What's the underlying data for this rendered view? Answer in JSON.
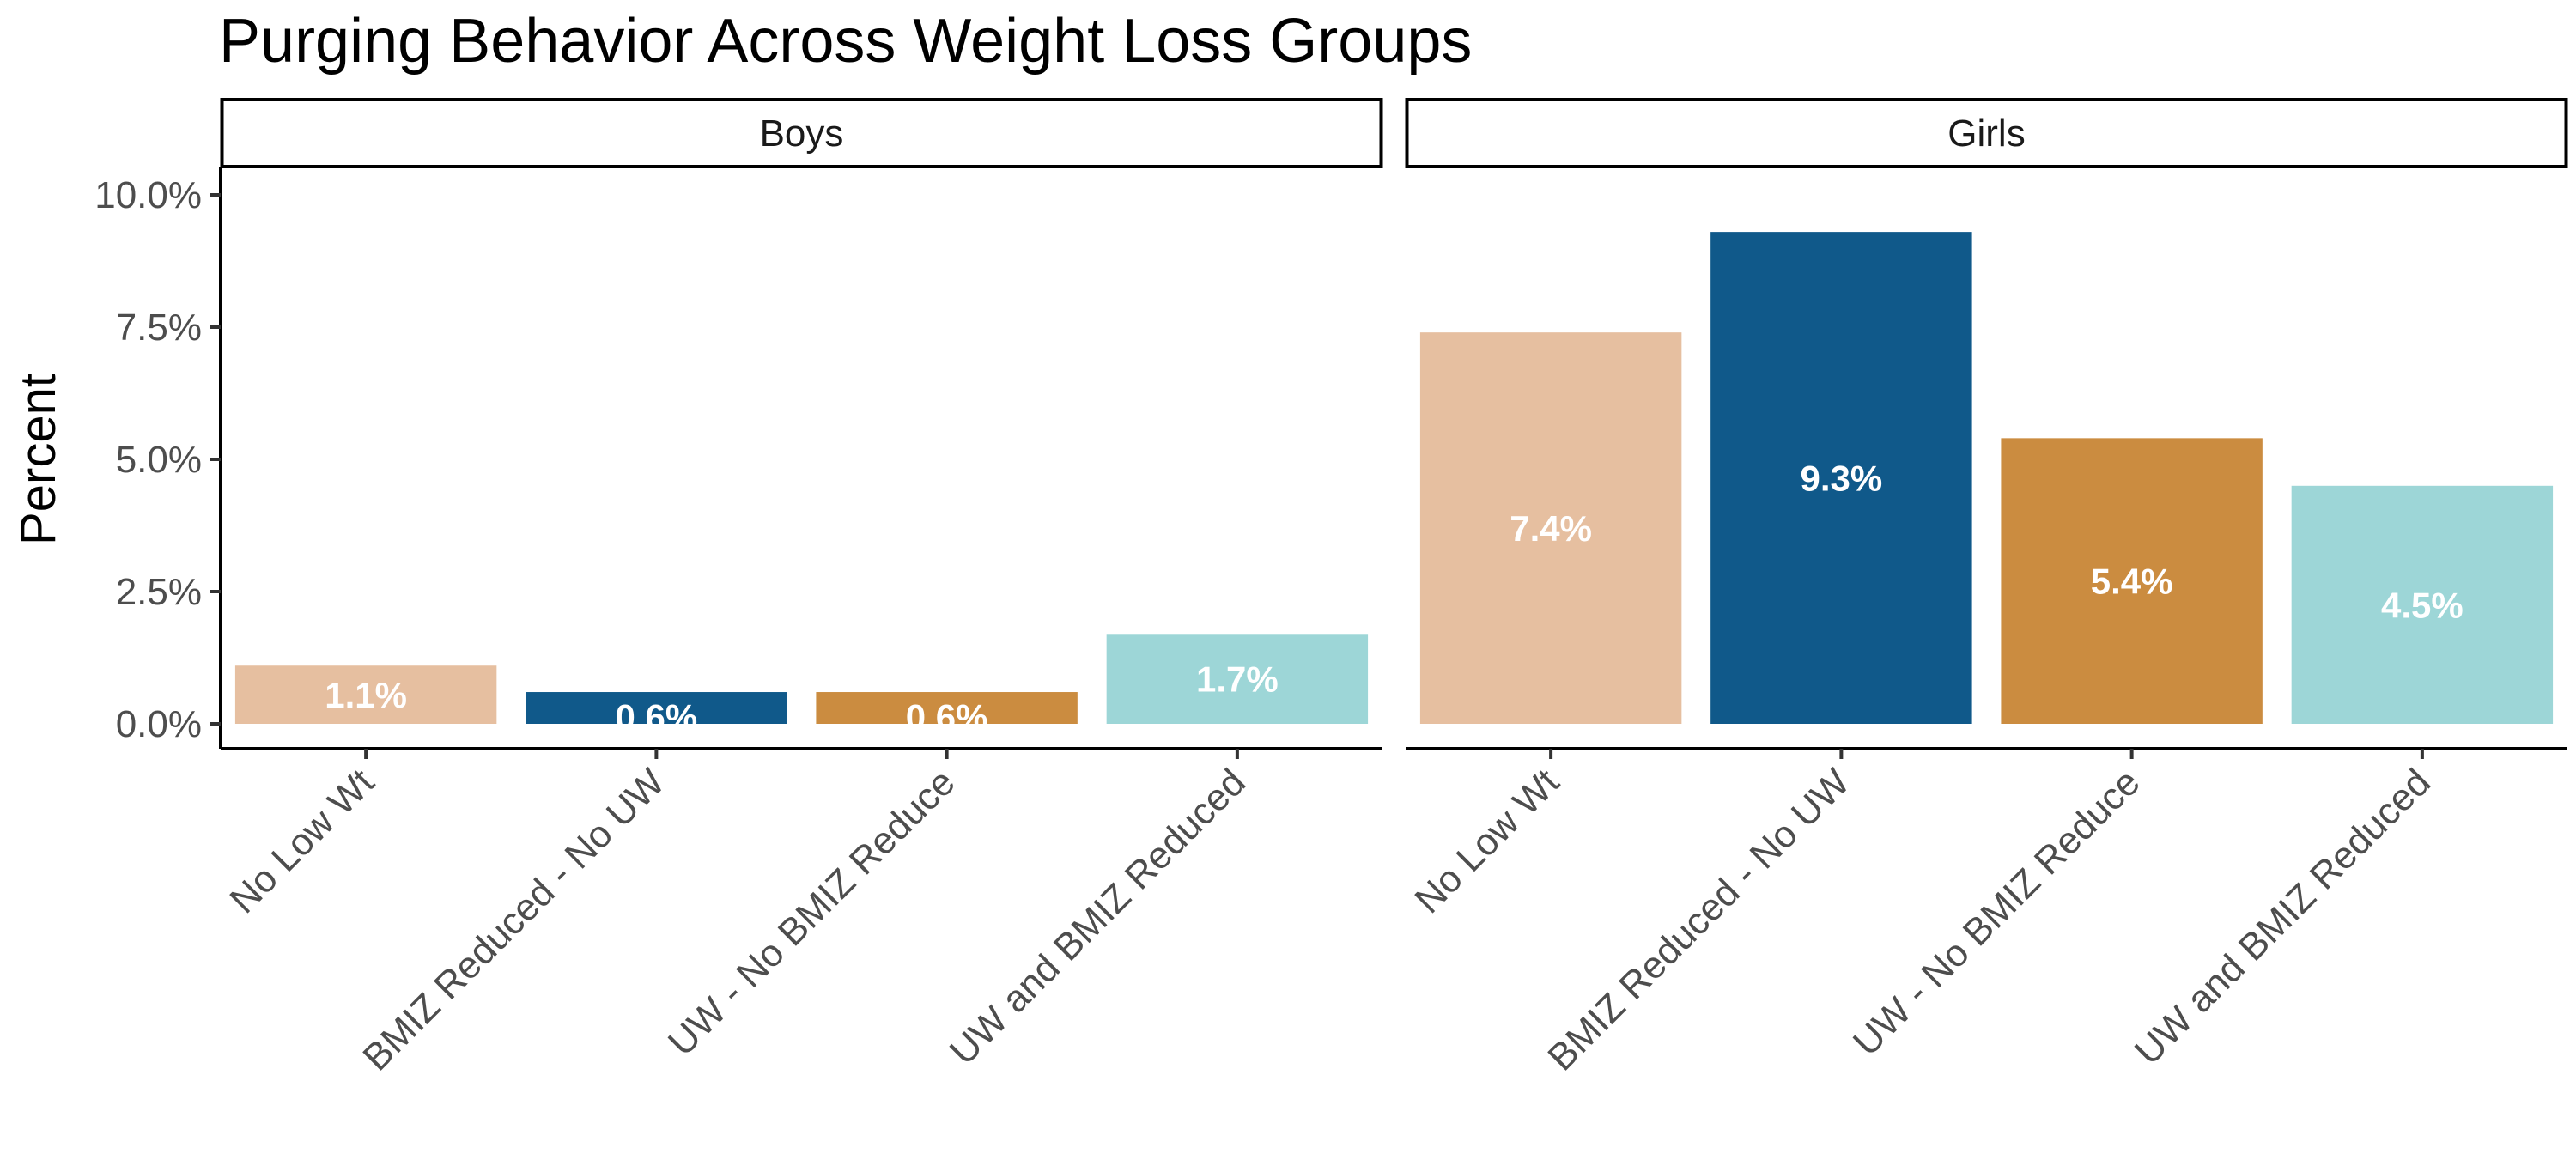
{
  "chart_data": {
    "type": "bar",
    "title": "Purging Behavior Across Weight Loss Groups",
    "ylabel": "Percent",
    "xlabel": "",
    "ylim": [
      0,
      10
    ],
    "yticks": [
      "0.0%",
      "2.5%",
      "5.0%",
      "7.5%",
      "10.0%"
    ],
    "ytick_values": [
      0,
      2.5,
      5,
      7.5,
      10
    ],
    "categories": [
      "No Low Wt",
      "BMIZ Reduced - No UW",
      "UW - No BMIZ Reduce",
      "UW and BMIZ Reduced"
    ],
    "colors": [
      "#e6bfa0",
      "#10598a",
      "#cb8c40",
      "#9dd6d7"
    ],
    "grid": false,
    "facets": [
      {
        "name": "Boys",
        "values": [
          1.1,
          0.6,
          0.6,
          1.7
        ],
        "labels": [
          "1.1%",
          "0.6%",
          "0.6%",
          "1.7%"
        ]
      },
      {
        "name": "Girls",
        "values": [
          7.4,
          9.3,
          5.4,
          4.5
        ],
        "labels": [
          "7.4%",
          "9.3%",
          "5.4%",
          "4.5%"
        ]
      }
    ]
  }
}
